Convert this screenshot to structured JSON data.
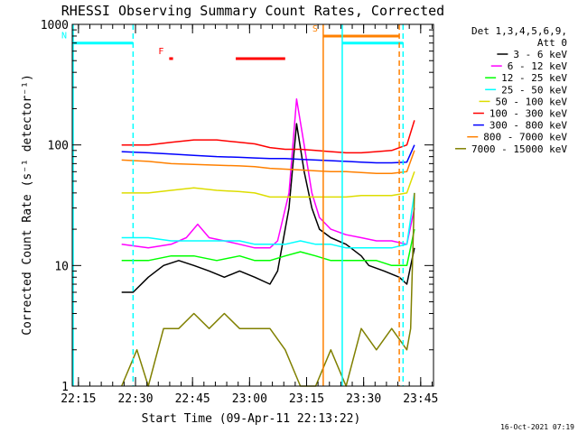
{
  "chart_data": {
    "type": "line",
    "title": "RHESSI Observing Summary Count Rates, Corrected",
    "xlabel": "Start Time (09-Apr-11 22:13:22)",
    "ylabel": "Corrected Count Rate (s⁻¹ detector⁻¹)",
    "y_scale": "log",
    "ylim": [
      1,
      1000
    ],
    "y_ticks": [
      {
        "value": 1,
        "label": "1"
      },
      {
        "value": 10,
        "label": "10"
      },
      {
        "value": 100,
        "label": "100"
      },
      {
        "value": 1000,
        "label": "1000"
      }
    ],
    "x_unit": "minutes since 22:13:22",
    "xlim": [
      0,
      95
    ],
    "x_ticks": [
      {
        "value": 1.63,
        "label": "22:15"
      },
      {
        "value": 16.63,
        "label": "22:30"
      },
      {
        "value": 31.63,
        "label": "22:45"
      },
      {
        "value": 46.63,
        "label": "23:00"
      },
      {
        "value": 61.63,
        "label": "23:15"
      },
      {
        "value": 76.63,
        "label": "23:30"
      },
      {
        "value": 91.63,
        "label": "23:45"
      }
    ],
    "legend": {
      "placement": "right",
      "header": [
        "Det 1,3,4,5,6,9,",
        "Att 0"
      ]
    },
    "series": [
      {
        "name": "3 - 6 keV",
        "color": "#000000",
        "x": [
          13,
          16,
          20,
          24,
          28,
          32,
          36,
          40,
          44,
          48,
          52,
          54,
          57,
          59,
          61,
          63,
          65,
          68,
          72,
          76,
          78,
          82,
          86,
          88,
          90
        ],
        "y": [
          6,
          6,
          8,
          10,
          11,
          10,
          9,
          8,
          9,
          8,
          7,
          9,
          30,
          150,
          60,
          30,
          20,
          17,
          15,
          12,
          10,
          9,
          8,
          7,
          14
        ]
      },
      {
        "name": "6 - 12 keV",
        "color": "#ff00ff",
        "x": [
          13,
          20,
          26,
          30,
          33,
          36,
          40,
          44,
          48,
          52,
          54,
          57,
          59,
          61,
          63,
          65,
          68,
          72,
          76,
          80,
          84,
          88,
          90
        ],
        "y": [
          15,
          14,
          15,
          17,
          22,
          17,
          16,
          15,
          14,
          14,
          16,
          40,
          240,
          100,
          40,
          25,
          20,
          18,
          17,
          16,
          16,
          15,
          30
        ]
      },
      {
        "name": "12 - 25 keV",
        "color": "#00ff00",
        "x": [
          13,
          20,
          26,
          32,
          38,
          44,
          48,
          52,
          56,
          60,
          64,
          68,
          72,
          76,
          80,
          84,
          88,
          90
        ],
        "y": [
          11,
          11,
          12,
          12,
          11,
          12,
          11,
          11,
          12,
          13,
          12,
          11,
          11,
          11,
          11,
          10,
          10,
          20
        ]
      },
      {
        "name": "25 - 50 keV",
        "color": "#00ffff",
        "x": [
          13,
          20,
          26,
          32,
          38,
          44,
          48,
          52,
          56,
          60,
          64,
          68,
          72,
          76,
          80,
          84,
          88,
          90
        ],
        "y": [
          17,
          17,
          16,
          16,
          16,
          16,
          15,
          15,
          15,
          16,
          15,
          15,
          14,
          14,
          14,
          14,
          15,
          40
        ]
      },
      {
        "name": "50 - 100 keV",
        "color": "#dddd00",
        "x": [
          13,
          20,
          26,
          32,
          38,
          44,
          48,
          52,
          56,
          60,
          64,
          68,
          72,
          76,
          80,
          84,
          88,
          90
        ],
        "y": [
          40,
          40,
          42,
          44,
          42,
          41,
          40,
          37,
          37,
          37,
          37,
          37,
          37,
          38,
          38,
          38,
          40,
          60
        ]
      },
      {
        "name": "100 - 300 keV",
        "color": "#ff0000",
        "x": [
          13,
          20,
          26,
          32,
          38,
          44,
          48,
          52,
          56,
          60,
          64,
          68,
          72,
          76,
          80,
          84,
          88,
          90
        ],
        "y": [
          100,
          100,
          105,
          110,
          110,
          105,
          102,
          95,
          92,
          92,
          90,
          88,
          86,
          86,
          88,
          90,
          100,
          160
        ]
      },
      {
        "name": "300 - 800 keV",
        "color": "#0000ff",
        "x": [
          13,
          20,
          26,
          32,
          38,
          44,
          48,
          52,
          56,
          60,
          64,
          68,
          72,
          76,
          80,
          84,
          88,
          90
        ],
        "y": [
          88,
          86,
          84,
          82,
          80,
          79,
          78,
          77,
          77,
          76,
          75,
          74,
          73,
          72,
          71,
          71,
          72,
          100
        ]
      },
      {
        "name": "800 - 7000 keV",
        "color": "#ff8000",
        "x": [
          13,
          20,
          26,
          32,
          38,
          44,
          48,
          52,
          56,
          60,
          64,
          68,
          72,
          76,
          80,
          84,
          88,
          90
        ],
        "y": [
          75,
          73,
          70,
          69,
          68,
          67,
          66,
          64,
          63,
          62,
          61,
          60,
          60,
          59,
          58,
          58,
          60,
          90
        ]
      },
      {
        "name": "7000 - 15000 keV",
        "color": "#808000",
        "x": [
          13,
          17,
          20,
          24,
          28,
          32,
          36,
          40,
          44,
          48,
          52,
          56,
          60,
          64,
          68,
          72,
          76,
          80,
          84,
          88,
          89,
          90
        ],
        "y": [
          1,
          2,
          1,
          3,
          3,
          4,
          3,
          4,
          3,
          3,
          3,
          2,
          1,
          1,
          2,
          1,
          3,
          2,
          3,
          2,
          3,
          40
        ]
      }
    ],
    "flags": [
      {
        "label": "N",
        "color": "#00ffff",
        "level": 700,
        "x_start": 0,
        "x_end": 16
      },
      {
        "label": "F",
        "color": "#ff0000",
        "level": 520,
        "x_start": 25.5,
        "x_end": 26.5
      },
      {
        "label": "",
        "color": "#ff0000",
        "level": 520,
        "x_start": 43,
        "x_end": 56
      },
      {
        "label": "S",
        "color": "#ff8000",
        "level": 800,
        "x_start": 66,
        "x_end": 86
      },
      {
        "label": "",
        "color": "#00ffff",
        "level": 700,
        "x_start": 71,
        "x_end": 87
      }
    ],
    "vertical_lines": [
      {
        "x": 0,
        "color": "#00ffff",
        "style": "solid"
      },
      {
        "x": 16,
        "color": "#00ffff",
        "style": "dashed"
      },
      {
        "x": 66,
        "color": "#ff8000",
        "style": "solid"
      },
      {
        "x": 71,
        "color": "#00ffff",
        "style": "solid"
      },
      {
        "x": 86,
        "color": "#ff8000",
        "style": "dashed"
      },
      {
        "x": 87,
        "color": "#00ffff",
        "style": "dashed"
      }
    ],
    "footer_timestamp": "16-Oct-2021 07:19"
  }
}
